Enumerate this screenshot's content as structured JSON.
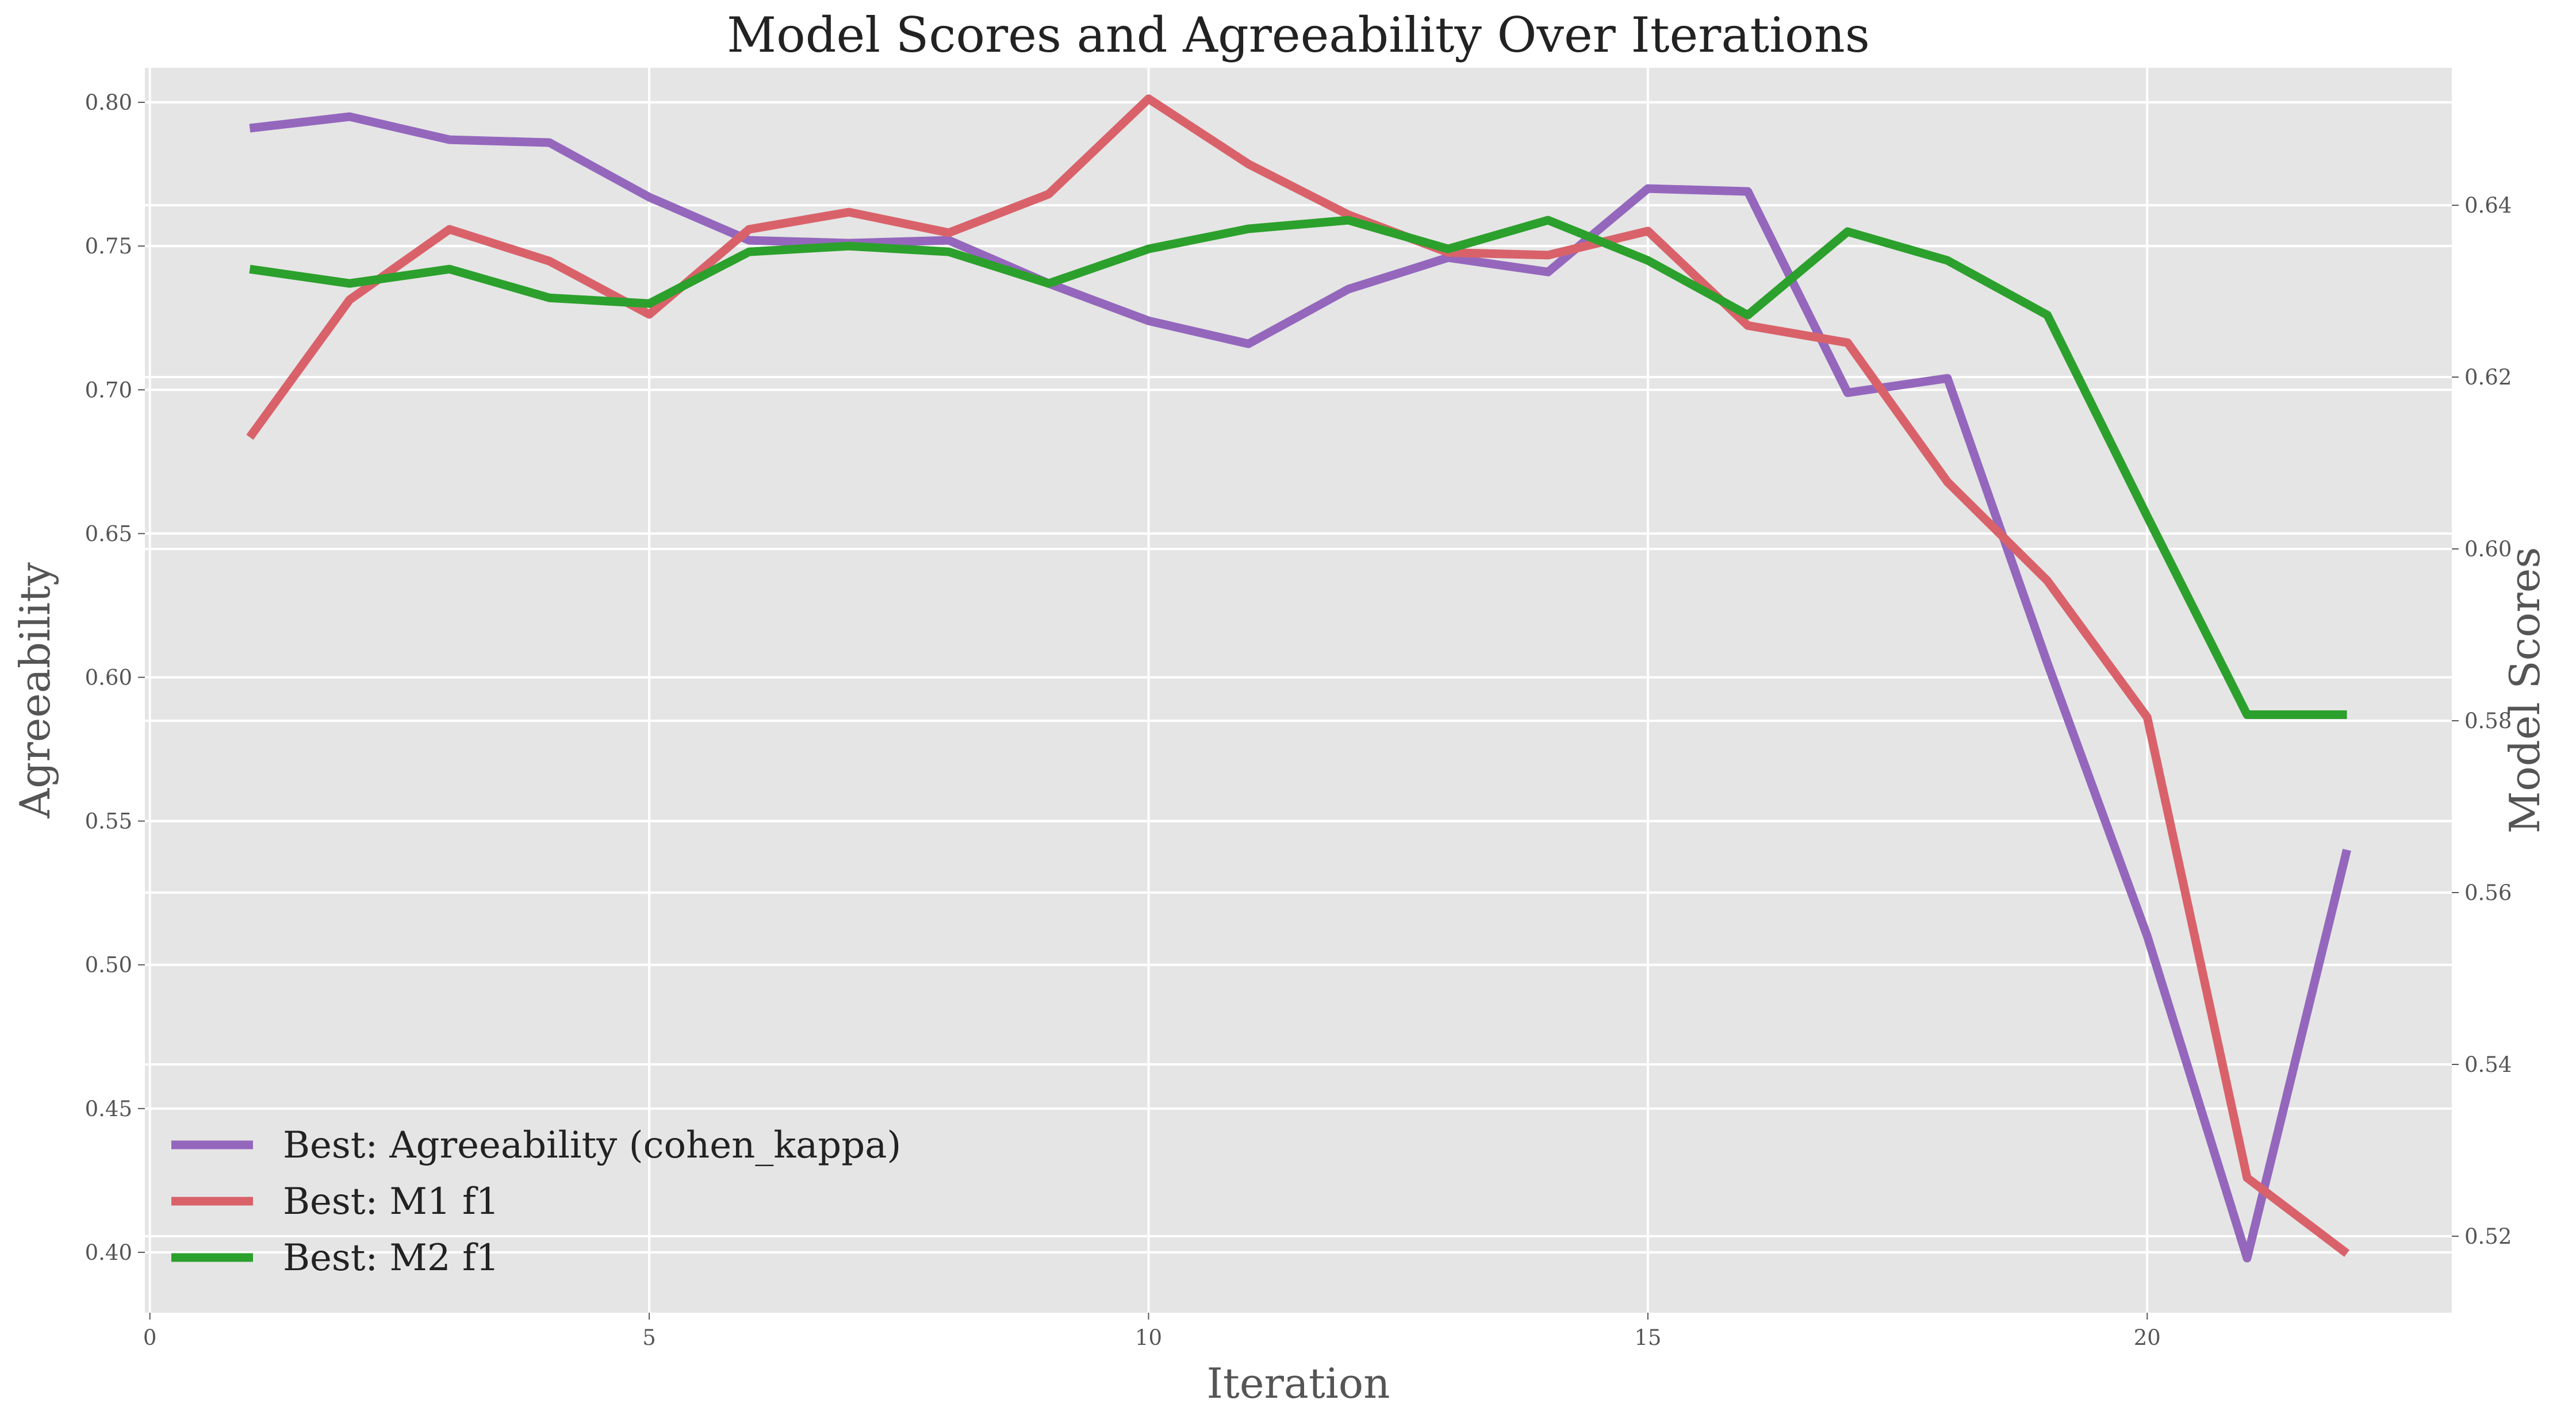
{
  "chart_data": {
    "type": "line",
    "title": "Model Scores and Agreeability Over Iterations",
    "xlabel": "Iteration",
    "ylabel": "Agreeability",
    "ylabel_right": "Model Scores",
    "x": [
      1,
      2,
      3,
      4,
      5,
      6,
      7,
      8,
      9,
      10,
      11,
      12,
      13,
      14,
      15,
      16,
      17,
      18,
      19,
      20,
      21,
      22
    ],
    "xlim": [
      -0.05,
      23.05
    ],
    "ylim": [
      0.379,
      0.812
    ],
    "ylim_right": [
      0.5111,
      0.656
    ],
    "x_ticks": [
      0,
      5,
      10,
      15,
      20
    ],
    "y_ticks": [
      0.4,
      0.45,
      0.5,
      0.55,
      0.6,
      0.65,
      0.7,
      0.75,
      0.8
    ],
    "y_ticks_right": [
      0.52,
      0.54,
      0.56,
      0.58,
      0.6,
      0.62,
      0.64
    ],
    "x_tick_labels": [
      "0",
      "5",
      "10",
      "15",
      "20"
    ],
    "y_tick_labels": [
      "0.40",
      "0.45",
      "0.50",
      "0.55",
      "0.60",
      "0.65",
      "0.70",
      "0.75",
      "0.80"
    ],
    "y_tick_labels_right": [
      "0.52",
      "0.54",
      "0.56",
      "0.58",
      "0.60",
      "0.62",
      "0.64"
    ],
    "grid": true,
    "legend_position": "bottom-left",
    "series": [
      {
        "name": "Best: Agreeability (cohen_kappa)",
        "axis": "left",
        "color": "#9467bd",
        "values": [
          0.791,
          0.795,
          0.787,
          0.786,
          0.767,
          0.752,
          0.751,
          0.752,
          0.737,
          0.724,
          0.716,
          0.735,
          0.746,
          0.741,
          0.77,
          0.769,
          0.699,
          0.704,
          0.605,
          0.51,
          0.398,
          0.54
        ]
      },
      {
        "name": "Best: M1 f1",
        "axis": "right",
        "color": "#d9626a",
        "values": [
          0.613,
          0.629,
          0.6372,
          0.6335,
          0.6273,
          0.6372,
          0.6392,
          0.6368,
          0.6413,
          0.6524,
          0.6448,
          0.6389,
          0.6345,
          0.6342,
          0.637,
          0.626,
          0.624,
          0.6078,
          0.5963,
          0.5804,
          0.5268,
          0.518
        ]
      },
      {
        "name": "Best: M2 f1",
        "axis": "left",
        "color": "#2ca02c",
        "values": [
          0.742,
          0.737,
          0.742,
          0.732,
          0.73,
          0.748,
          0.75,
          0.748,
          0.737,
          0.749,
          0.756,
          0.759,
          0.749,
          0.759,
          0.745,
          0.726,
          0.755,
          0.745,
          0.726,
          0.656,
          0.587,
          0.587
        ]
      }
    ]
  }
}
